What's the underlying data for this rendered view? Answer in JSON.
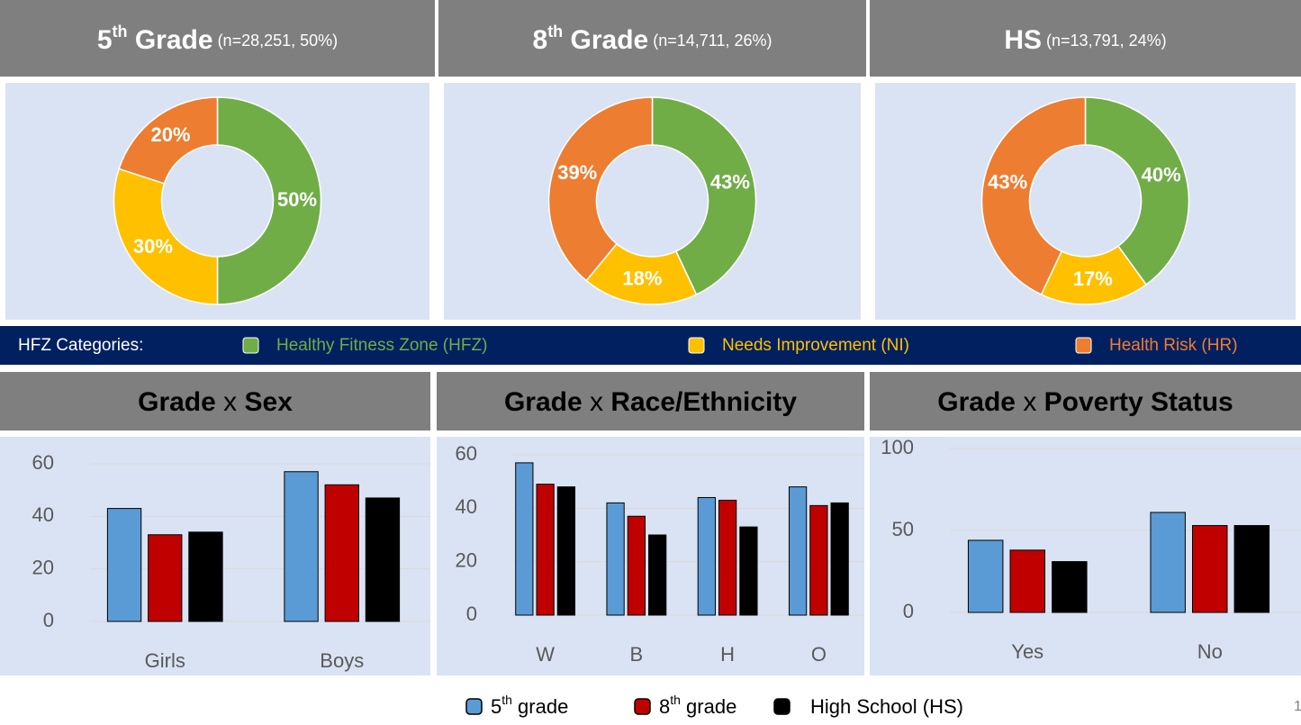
{
  "hfz_legend": {
    "label": "HFZ Categories:",
    "items": [
      {
        "text": "Healthy Fitness Zone (HFZ)",
        "color": "#70ad47"
      },
      {
        "text": "Needs Improvement (NI)",
        "color": "#ffc000"
      },
      {
        "text": "Health Risk (HR)",
        "color": "#ed7d31"
      }
    ]
  },
  "bar_legend": [
    {
      "num": "5",
      "sup": "th",
      "text": " grade",
      "color": "#5b9bd5"
    },
    {
      "num": "8",
      "sup": "th",
      "text": " grade",
      "color": "#c00000"
    },
    {
      "num": "",
      "sup": "",
      "text": "High School (HS)",
      "color": "#000000"
    }
  ],
  "page_number": "1",
  "chart_data": [
    {
      "type": "pie",
      "title": {
        "main": "5",
        "sup": "th",
        "rest": " Grade",
        "note": " (n=28,251, 50%)"
      },
      "values": [
        50,
        30,
        20
      ],
      "value_labels": [
        "50%",
        "30%",
        "20%"
      ]
    },
    {
      "type": "pie",
      "title": {
        "main": "8",
        "sup": "th",
        "rest": " Grade",
        "note": " (n=14,711, 26%)"
      },
      "values": [
        43,
        18,
        39
      ],
      "value_labels": [
        "43%",
        "18%",
        "39%"
      ]
    },
    {
      "type": "pie",
      "title": {
        "main": "HS",
        "sup": "",
        "rest": "",
        "note": " (n=13,791, 24%)"
      },
      "values": [
        40,
        17,
        43
      ],
      "value_labels": [
        "40%",
        "17%",
        "43%"
      ]
    },
    {
      "type": "bar",
      "title": {
        "a": "Grade",
        "x": " x ",
        "b": "Sex"
      },
      "categories": [
        "Girls",
        "Boys"
      ],
      "ylim": [
        0,
        60
      ],
      "yticks": [
        0,
        20,
        40,
        60
      ],
      "grid": true,
      "series": [
        {
          "color": "#5b9bd5",
          "values": [
            43,
            57
          ]
        },
        {
          "color": "#c00000",
          "values": [
            33,
            52
          ]
        },
        {
          "color": "#000000",
          "values": [
            34,
            47
          ]
        }
      ]
    },
    {
      "type": "bar",
      "title": {
        "a": "Grade",
        "x": " x ",
        "b": "Race/Ethnicity"
      },
      "categories": [
        "W",
        "B",
        "H",
        "O"
      ],
      "ylim": [
        0,
        60
      ],
      "yticks": [
        0,
        20,
        40,
        60
      ],
      "grid": true,
      "series": [
        {
          "color": "#5b9bd5",
          "values": [
            57,
            42,
            44,
            48
          ]
        },
        {
          "color": "#c00000",
          "values": [
            49,
            37,
            43,
            41
          ]
        },
        {
          "color": "#000000",
          "values": [
            48,
            30,
            33,
            42
          ]
        }
      ]
    },
    {
      "type": "bar",
      "title": {
        "a": "Grade",
        "x": " x ",
        "b": "Poverty Status"
      },
      "categories": [
        "Yes",
        "No"
      ],
      "ylim": [
        0,
        100
      ],
      "yticks": [
        0,
        50,
        100
      ],
      "grid": true,
      "series": [
        {
          "color": "#5b9bd5",
          "values": [
            44,
            61
          ]
        },
        {
          "color": "#c00000",
          "values": [
            38,
            53
          ]
        },
        {
          "color": "#000000",
          "values": [
            31,
            53
          ]
        }
      ]
    }
  ]
}
